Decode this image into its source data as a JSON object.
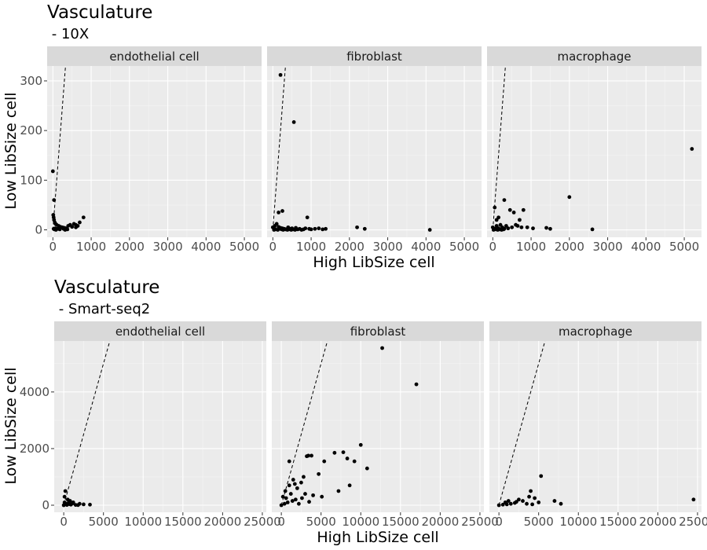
{
  "chart_data": [
    {
      "type": "scatter",
      "title": "Vasculature",
      "subtitle": " - 10X",
      "xlabel": "High LibSize cell",
      "ylabel": "Low LibSize cell",
      "xlim": [
        -150,
        5450
      ],
      "ylim": [
        -15,
        330
      ],
      "xticks": [
        0,
        1000,
        2000,
        3000,
        4000,
        5000
      ],
      "xtick_labels": [
        "0",
        "1000",
        "2000",
        "3000",
        "4000",
        "5000"
      ],
      "yticks": [
        0,
        100,
        200,
        300
      ],
      "ytick_labels": [
        "0",
        "100",
        "200",
        "300"
      ],
      "reference_line": {
        "style": "dashed",
        "slope": 1
      },
      "grid": true,
      "facets": [
        {
          "label": "endothelial cell",
          "points": [
            [
              0,
              118
            ],
            [
              30,
              60
            ],
            [
              10,
              30
            ],
            [
              20,
              25
            ],
            [
              30,
              20
            ],
            [
              50,
              15
            ],
            [
              70,
              12
            ],
            [
              100,
              10
            ],
            [
              150,
              8
            ],
            [
              200,
              6
            ],
            [
              250,
              5
            ],
            [
              300,
              4
            ],
            [
              350,
              3
            ],
            [
              400,
              8
            ],
            [
              450,
              10
            ],
            [
              500,
              6
            ],
            [
              550,
              12
            ],
            [
              600,
              5
            ],
            [
              650,
              8
            ],
            [
              700,
              15
            ],
            [
              800,
              25
            ],
            [
              600,
              10
            ],
            [
              20,
              2
            ],
            [
              40,
              1
            ],
            [
              60,
              3
            ],
            [
              80,
              0
            ],
            [
              120,
              2
            ],
            [
              180,
              1
            ],
            [
              220,
              4
            ],
            [
              280,
              2
            ],
            [
              320,
              0
            ],
            [
              380,
              1
            ]
          ]
        },
        {
          "label": "fibroblast",
          "points": [
            [
              200,
              312
            ],
            [
              550,
              217
            ],
            [
              150,
              35
            ],
            [
              250,
              38
            ],
            [
              900,
              25
            ],
            [
              0,
              5
            ],
            [
              50,
              8
            ],
            [
              100,
              12
            ],
            [
              150,
              6
            ],
            [
              200,
              4
            ],
            [
              250,
              3
            ],
            [
              300,
              2
            ],
            [
              350,
              1
            ],
            [
              400,
              5
            ],
            [
              450,
              2
            ],
            [
              500,
              3
            ],
            [
              600,
              4
            ],
            [
              700,
              2
            ],
            [
              800,
              1
            ],
            [
              850,
              3
            ],
            [
              950,
              2
            ],
            [
              1000,
              1
            ],
            [
              1100,
              2
            ],
            [
              1200,
              3
            ],
            [
              1300,
              1
            ],
            [
              1380,
              2
            ],
            [
              2200,
              5
            ],
            [
              2400,
              2
            ],
            [
              4100,
              0
            ],
            [
              30,
              0
            ],
            [
              70,
              1
            ],
            [
              130,
              0
            ],
            [
              170,
              2
            ],
            [
              230,
              1
            ],
            [
              270,
              0
            ],
            [
              330,
              1
            ],
            [
              380,
              0
            ],
            [
              420,
              1
            ],
            [
              480,
              0
            ],
            [
              530,
              1
            ],
            [
              580,
              0
            ],
            [
              650,
              1
            ],
            [
              750,
              0
            ]
          ]
        },
        {
          "label": "macrophage",
          "points": [
            [
              5200,
              163
            ],
            [
              2000,
              66
            ],
            [
              300,
              60
            ],
            [
              50,
              45
            ],
            [
              450,
              40
            ],
            [
              800,
              40
            ],
            [
              550,
              35
            ],
            [
              100,
              20
            ],
            [
              150,
              25
            ],
            [
              700,
              20
            ],
            [
              2600,
              1
            ],
            [
              1400,
              4
            ],
            [
              1500,
              2
            ],
            [
              1050,
              3
            ],
            [
              900,
              5
            ],
            [
              0,
              5
            ],
            [
              50,
              2
            ],
            [
              100,
              8
            ],
            [
              150,
              3
            ],
            [
              200,
              10
            ],
            [
              250,
              5
            ],
            [
              300,
              2
            ],
            [
              350,
              8
            ],
            [
              400,
              3
            ],
            [
              500,
              5
            ],
            [
              600,
              10
            ],
            [
              650,
              8
            ],
            [
              750,
              5
            ],
            [
              20,
              0
            ],
            [
              80,
              1
            ],
            [
              130,
              0
            ],
            [
              180,
              1
            ],
            [
              230,
              0
            ],
            [
              280,
              1
            ]
          ]
        }
      ]
    },
    {
      "type": "scatter",
      "title": "Vasculature",
      "subtitle": " - Smart-seq2",
      "xlabel": "High LibSize cell",
      "ylabel": "Low LibSize cell",
      "xlim": [
        -1200,
        25500
      ],
      "ylim": [
        -250,
        5800
      ],
      "xticks": [
        0,
        5000,
        10000,
        15000,
        20000,
        25000
      ],
      "xtick_labels": [
        "0",
        "5000",
        "10000",
        "15000",
        "20000",
        "25000"
      ],
      "yticks": [
        0,
        2000,
        4000
      ],
      "ytick_labels": [
        "0",
        "2000",
        "4000"
      ],
      "reference_line": {
        "style": "dashed",
        "slope": 1
      },
      "grid": true,
      "facets": [
        {
          "label": "endothelial cell",
          "points": [
            [
              200,
              500
            ],
            [
              100,
              300
            ],
            [
              500,
              200
            ],
            [
              800,
              150
            ],
            [
              1200,
              100
            ],
            [
              3300,
              20
            ],
            [
              2000,
              50
            ],
            [
              2500,
              30
            ],
            [
              0,
              0
            ],
            [
              300,
              50
            ],
            [
              600,
              80
            ],
            [
              900,
              20
            ],
            [
              1500,
              10
            ],
            [
              100,
              100
            ],
            [
              400,
              10
            ],
            [
              700,
              40
            ],
            [
              1100,
              60
            ],
            [
              1800,
              5
            ]
          ]
        },
        {
          "label": "fibroblast",
          "points": [
            [
              12700,
              5550
            ],
            [
              17000,
              4270
            ],
            [
              10000,
              2130
            ],
            [
              7800,
              1870
            ],
            [
              6700,
              1850
            ],
            [
              9200,
              1550
            ],
            [
              8300,
              1650
            ],
            [
              5400,
              1550
            ],
            [
              3800,
              1750
            ],
            [
              3400,
              1750
            ],
            [
              3200,
              1730
            ],
            [
              1000,
              1550
            ],
            [
              10800,
              1300
            ],
            [
              4700,
              1100
            ],
            [
              7200,
              500
            ],
            [
              8600,
              700
            ],
            [
              5100,
              300
            ],
            [
              4000,
              350
            ],
            [
              2500,
              800
            ],
            [
              2000,
              600
            ],
            [
              1500,
              900
            ],
            [
              1000,
              700
            ],
            [
              500,
              500
            ],
            [
              200,
              300
            ],
            [
              3000,
              400
            ],
            [
              2800,
              1000
            ],
            [
              1200,
              400
            ],
            [
              1800,
              200
            ],
            [
              800,
              100
            ],
            [
              400,
              50
            ],
            [
              0,
              0
            ],
            [
              2200,
              50
            ],
            [
              2600,
              250
            ],
            [
              3500,
              120
            ],
            [
              600,
              250
            ],
            [
              1400,
              150
            ],
            [
              1700,
              750
            ]
          ]
        },
        {
          "label": "macrophage",
          "points": [
            [
              24500,
              200
            ],
            [
              5300,
              1030
            ],
            [
              4000,
              500
            ],
            [
              4500,
              250
            ],
            [
              3800,
              300
            ],
            [
              7000,
              150
            ],
            [
              7800,
              50
            ],
            [
              5000,
              100
            ],
            [
              3000,
              150
            ],
            [
              2500,
              200
            ],
            [
              2000,
              80
            ],
            [
              1500,
              50
            ],
            [
              1000,
              30
            ],
            [
              500,
              20
            ],
            [
              0,
              0
            ],
            [
              3500,
              50
            ],
            [
              4200,
              30
            ],
            [
              2200,
              120
            ],
            [
              1200,
              150
            ],
            [
              800,
              100
            ]
          ]
        }
      ]
    }
  ]
}
